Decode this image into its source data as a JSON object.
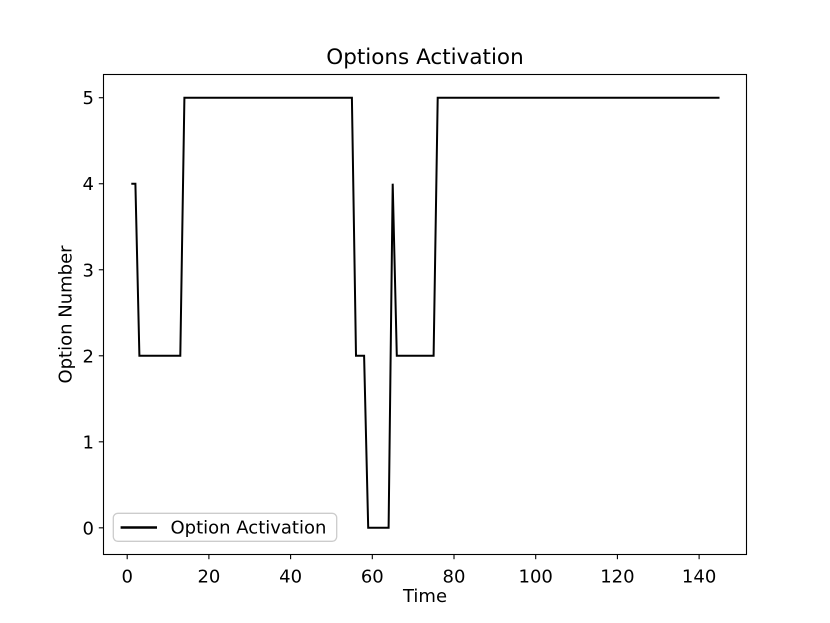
{
  "figure": {
    "background": "#ffffff",
    "axis_color": "#000000"
  },
  "chart_data": {
    "type": "line",
    "title": "Options Activation",
    "xlabel": "Time",
    "ylabel": "Option Number",
    "grid": false,
    "legend": {
      "position": "lower left",
      "entries": [
        {
          "label": "Option Activation",
          "color": "#000000"
        }
      ]
    },
    "series": [
      {
        "name": "Option Activation",
        "color": "#000000",
        "line_width": 2,
        "points": [
          [
            1,
            4
          ],
          [
            2,
            4
          ],
          [
            3,
            2
          ],
          [
            13,
            2
          ],
          [
            14,
            5
          ],
          [
            55,
            5
          ],
          [
            56,
            2
          ],
          [
            58,
            2
          ],
          [
            59,
            0
          ],
          [
            64,
            0
          ],
          [
            65,
            4
          ],
          [
            66,
            2
          ],
          [
            75,
            2
          ],
          [
            76,
            5
          ],
          [
            145,
            5
          ]
        ]
      }
    ],
    "x_ticks": [
      0,
      20,
      40,
      60,
      80,
      100,
      120,
      140
    ],
    "y_ticks": [
      0,
      1,
      2,
      3,
      4,
      5
    ],
    "xlim": [
      -5.8,
      151.6
    ],
    "ylim": [
      -0.31,
      5.27
    ]
  }
}
